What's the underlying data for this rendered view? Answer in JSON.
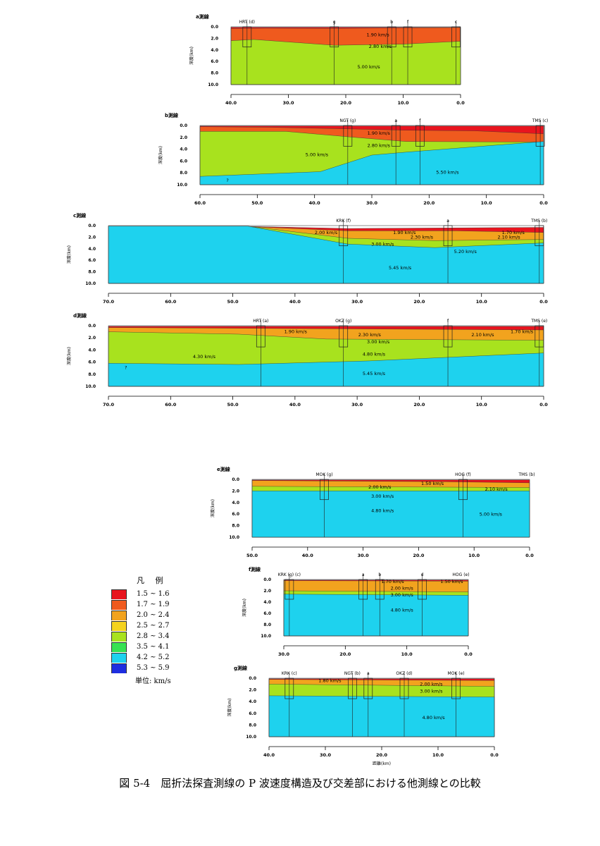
{
  "caption": "図 5-4　屈折法探査測線の P 波速度構造及び交差部における他測線との比較",
  "legend": {
    "title": "凡 例",
    "unit": "単位: km/s",
    "items": [
      {
        "label": "1.5 ~ 1.6",
        "color": "#e8141e"
      },
      {
        "label": "1.7 ~ 1.9",
        "color": "#ef5a1e"
      },
      {
        "label": "2.0 ~ 2.4",
        "color": "#f2a31e"
      },
      {
        "label": "2.5 ~ 2.7",
        "color": "#f4d21e"
      },
      {
        "label": "2.8 ~ 3.4",
        "color": "#a8e21e"
      },
      {
        "label": "3.5 ~ 4.1",
        "color": "#36e252"
      },
      {
        "label": "4.2 ~ 5.2",
        "color": "#1ed2ee"
      },
      {
        "label": "5.3 ~ 5.9",
        "color": "#1e2ee0"
      }
    ]
  },
  "y_axis_label": "深度(km)",
  "x_axis_label": "距離(km)",
  "y_ticks": [
    "0.0",
    "2.0",
    "4.0",
    "6.0",
    "8.0",
    "10.0"
  ],
  "sections": [
    {
      "title": "a測線",
      "x_ticks": [
        "40.0",
        "30.0",
        "20.0",
        "10.0",
        "0.0"
      ],
      "stations": [
        "HRT (d)",
        "g",
        "b",
        "f",
        "c"
      ],
      "velocities": [
        "1.90 km/s",
        "2.80 km/s",
        "5.00 km/s"
      ]
    },
    {
      "title": "b測線",
      "x_ticks": [
        "60.0",
        "50.0",
        "40.0",
        "30.0",
        "20.0",
        "10.0",
        "0.0"
      ],
      "stations": [
        "NGT (g)",
        "a",
        "f",
        "TMS (c)"
      ],
      "velocities": [
        "1.90 km/s",
        "2.80 km/s",
        "5.00 km/s",
        "5.50 km/s",
        "?"
      ]
    },
    {
      "title": "c測線",
      "x_ticks": [
        "70.0",
        "60.0",
        "50.0",
        "40.0",
        "30.0",
        "20.0",
        "10.0",
        "0.0"
      ],
      "stations": [
        "KRK (f)",
        "a",
        "TMS (b)"
      ],
      "velocities": [
        "2.00 km/s",
        "1.90 km/s",
        "2.30 km/s",
        "3.00 km/s",
        "5.20 km/s",
        "5.45 km/s",
        "1.70 km/s",
        "2.10 km/s"
      ]
    },
    {
      "title": "d測線",
      "x_ticks": [
        "70.0",
        "60.0",
        "50.0",
        "40.0",
        "30.0",
        "20.0",
        "10.0",
        "0.0"
      ],
      "stations": [
        "HRT (a)",
        "OKZ (g)",
        "f",
        "TMS (e)"
      ],
      "velocities": [
        "1.90 km/s",
        "2.30 km/s",
        "2.10 km/s",
        "1.70 km/s",
        "3.00 km/s",
        "4.30 km/s",
        "4.80 km/s",
        "5.45 km/s",
        "?"
      ]
    },
    {
      "title": "e測線",
      "x_ticks": [
        "50.0",
        "40.0",
        "30.0",
        "20.0",
        "10.0",
        "0.0"
      ],
      "stations": [
        "MOK (g)",
        "HOG (f)",
        "TMS (b)"
      ],
      "velocities": [
        "1.50 km/s",
        "2.00 km/s",
        "2.10 km/s",
        "3.00 km/s",
        "4.80 km/s",
        "5.00 km/s"
      ]
    },
    {
      "title": "f測線",
      "x_ticks": [
        "30.0",
        "20.0",
        "10.0",
        "0.0"
      ],
      "stations": [
        "KRK (g) (c)",
        "a",
        "b",
        "d",
        "HOG (e)"
      ],
      "velocities": [
        "1.70 km/s",
        "1.50 km/s",
        "2.00 km/s",
        "3.00 km/s",
        "4.80 km/s"
      ]
    },
    {
      "title": "g測線",
      "x_ticks": [
        "40.0",
        "30.0",
        "20.0",
        "10.0",
        "0.0"
      ],
      "stations": [
        "KRK (c)",
        "NGT (b)",
        "a",
        "OKZ (d)",
        "MOK (e)"
      ],
      "velocities": [
        "1.80 km/s",
        "2.00 km/s",
        "3.00 km/s",
        "4.80 km/s"
      ]
    }
  ]
}
